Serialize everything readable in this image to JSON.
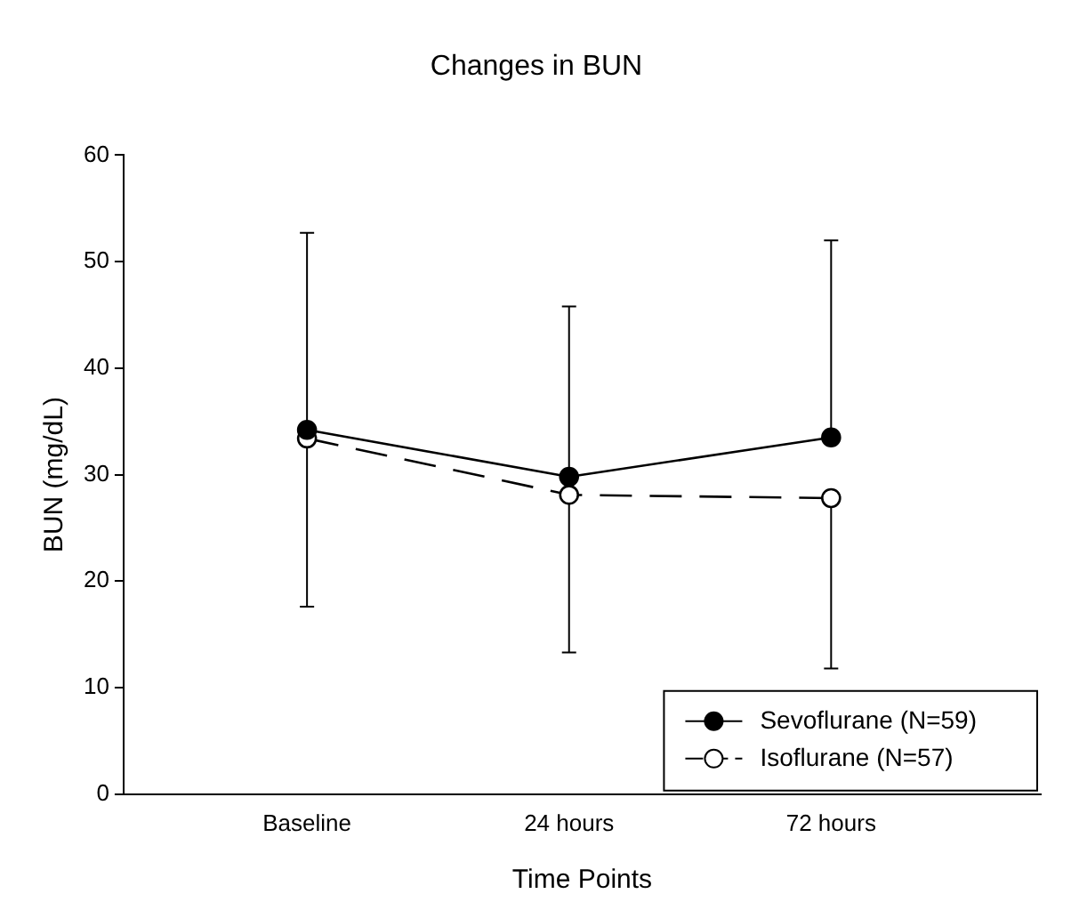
{
  "chart_data": {
    "type": "line",
    "title": "Changes in BUN",
    "xlabel": "Time Points",
    "ylabel": "BUN (mg/dL)",
    "categories": [
      "Baseline",
      "24 hours",
      "72 hours"
    ],
    "series": [
      {
        "name": "Sevoflurane (N=59)",
        "color": "#000000",
        "line_style": "solid",
        "values": [
          34.2,
          29.8,
          33.5
        ],
        "errors": [
          [
            34.2,
            52.7
          ],
          [
            29.8,
            45.8
          ],
          [
            33.5,
            52.0
          ]
        ]
      },
      {
        "name": "Isoflurane (N=57)",
        "color": "#000000",
        "line_style": "dashed",
        "values": [
          33.4,
          28.1,
          27.8
        ],
        "errors": [
          [
            17.6,
            33.4
          ],
          [
            13.3,
            28.1
          ],
          [
            11.8,
            27.8
          ]
        ]
      }
    ],
    "ylim": [
      0,
      60
    ],
    "yticks": [
      0,
      10,
      20,
      30,
      40,
      50,
      60
    ],
    "grid": false,
    "legend": "bottom right",
    "marker": "circle"
  }
}
